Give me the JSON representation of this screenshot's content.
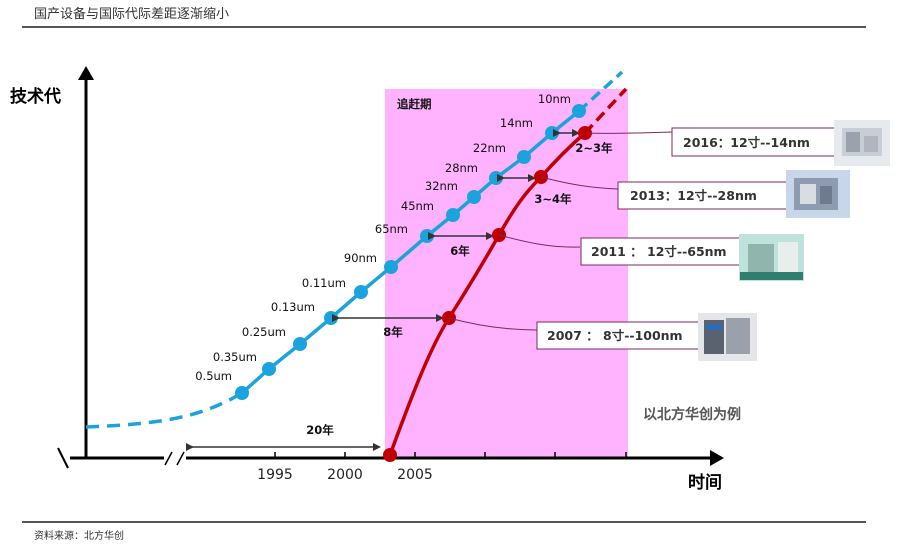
{
  "header": {
    "title": "国产设备与国际代际差距逐渐缩小"
  },
  "footer": {
    "source": "资料来源：北方华创"
  },
  "chart_data": {
    "type": "line",
    "ylabel": "技术代",
    "xlabel": "时间",
    "x_ticks": [
      "1995",
      "2000",
      "2005"
    ],
    "catch_up_zone_label": "追赶期",
    "example_note": "以北方华创为例",
    "colors": {
      "international": "#1aa3dd",
      "domestic": "#c00000",
      "zone": "#ffb3ff"
    },
    "series": [
      {
        "nodes": [
          "0.5um",
          "0.35um",
          "0.25um",
          "0.13um",
          "0.11um",
          "90nm",
          "65nm",
          "45nm",
          "32nm",
          "28nm",
          "22nm",
          "14nm",
          "10nm"
        ]
      },
      {
        "nodes": [
          "2007 ： 8寸--100nm",
          "2011 ： 12寸--65nm",
          "2013：12寸--28nm",
          "2016：12寸--14nm"
        ]
      }
    ],
    "gaps": [
      {
        "label": "20年"
      },
      {
        "label": "8年"
      },
      {
        "label": "6年"
      },
      {
        "label": "3~4年"
      },
      {
        "label": "2~3年"
      }
    ],
    "milestones": [
      {
        "label": "2016：12寸--14nm",
        "image": "equipment-photo"
      },
      {
        "label": "2013：12寸--28nm",
        "image": "equipment-photo"
      },
      {
        "label": "2011 ： 12寸--65nm",
        "image": "equipment-photo"
      },
      {
        "label": "2007 ： 8寸--100nm",
        "image": "equipment-photo"
      }
    ]
  }
}
